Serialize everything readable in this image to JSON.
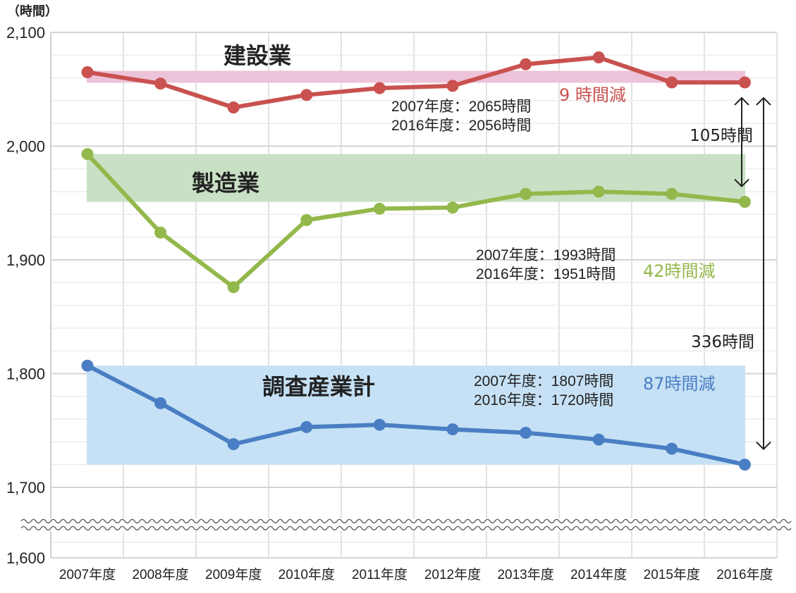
{
  "chart_data": {
    "type": "line",
    "unit_label": "（時間）",
    "categories": [
      "2007年度",
      "2008年度",
      "2009年度",
      "2010年度",
      "2011年度",
      "2012年度",
      "2013年度",
      "2014年度",
      "2015年度",
      "2016年度"
    ],
    "ylim": [
      1600,
      2100
    ],
    "ytick_labels": [
      "2,100",
      "2,000",
      "1,900",
      "1,800",
      "1,700",
      "1,600"
    ],
    "ytick_values": [
      2100,
      2000,
      1900,
      1800,
      1700,
      1600
    ],
    "axis_break_between": [
      1600,
      1700
    ],
    "grid": true,
    "series": [
      {
        "name": "建設業",
        "color": "#c9514f",
        "band_color": "#ecc3d8",
        "values": [
          2065,
          2055,
          2034,
          2045,
          2051,
          2053,
          2072,
          2078,
          2056,
          2056
        ],
        "band_range": [
          2056,
          2065
        ],
        "note_lines": [
          "2007年度：2065時間",
          "2016年度：2056時間"
        ],
        "diff_label": "9 時間減"
      },
      {
        "name": "製造業",
        "color": "#93b84b",
        "band_color": "#c8e0c4",
        "values": [
          1993,
          1924,
          1876,
          1935,
          1945,
          1946,
          1958,
          1960,
          1958,
          1951
        ],
        "band_range": [
          1951,
          1993
        ],
        "note_lines": [
          "2007年度：1993時間",
          "2016年度：1951時間"
        ],
        "diff_label": "42時間減"
      },
      {
        "name": "調査産業計",
        "color": "#4a7ec4",
        "band_color": "#c6e1f5",
        "values": [
          1807,
          1774,
          1738,
          1753,
          1755,
          1751,
          1748,
          1742,
          1734,
          1720
        ],
        "band_range": [
          1720,
          1807
        ],
        "note_lines": [
          "2007年度：1807時間",
          "2016年度：1720時間"
        ],
        "diff_label": "87時間減"
      }
    ],
    "gap_annotations": [
      {
        "label": "105時間",
        "from": 2056,
        "to": 1951
      },
      {
        "label": "336時間",
        "from": 2056,
        "to": 1720
      }
    ]
  }
}
